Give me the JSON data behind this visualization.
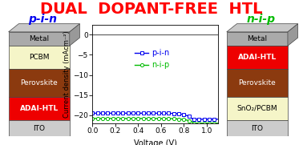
{
  "title": "DUAL  DOPANT-FREE  HTL",
  "title_color": "#FF0000",
  "pin_label": "p-i-n",
  "nip_label": "n-i-p",
  "pin_color": "#0000EE",
  "nip_color": "#00BB00",
  "xlabel": "Voltage (V)",
  "ylabel": "Current density (mAcm⁻²)",
  "xlim": [
    0.0,
    1.1
  ],
  "ylim": [
    -22,
    2.5
  ],
  "yticks": [
    0,
    -5,
    -10,
    -15,
    -20
  ],
  "xticks": [
    0.0,
    0.2,
    0.4,
    0.6,
    0.8,
    1.0
  ],
  "pin_layers": [
    {
      "label": "Metal",
      "color": "#AAAAAA",
      "text_color": "#000000",
      "bold": false
    },
    {
      "label": "PCBM",
      "color": "#F5F5C8",
      "text_color": "#000000",
      "bold": false
    },
    {
      "label": "Perovskite",
      "color": "#8B3A0F",
      "text_color": "#FFFFFF",
      "bold": false
    },
    {
      "label": "ADAI-HTL",
      "color": "#EE0000",
      "text_color": "#FFFFFF",
      "bold": true
    },
    {
      "label": "ITO",
      "color": "#CCCCCC",
      "text_color": "#000000",
      "bold": false
    }
  ],
  "nip_layers": [
    {
      "label": "Metal",
      "color": "#AAAAAA",
      "text_color": "#000000",
      "bold": false
    },
    {
      "label": "ADAI-HTL",
      "color": "#EE0000",
      "text_color": "#FFFFFF",
      "bold": true
    },
    {
      "label": "Perovskite",
      "color": "#8B3A0F",
      "text_color": "#FFFFFF",
      "bold": false
    },
    {
      "label": "SnO₂/PCBM",
      "color": "#F5F5C8",
      "text_color": "#000000",
      "bold": false
    },
    {
      "label": "ITO",
      "color": "#CCCCCC",
      "text_color": "#000000",
      "bold": false
    }
  ],
  "bg_color": "#FFFFFF"
}
